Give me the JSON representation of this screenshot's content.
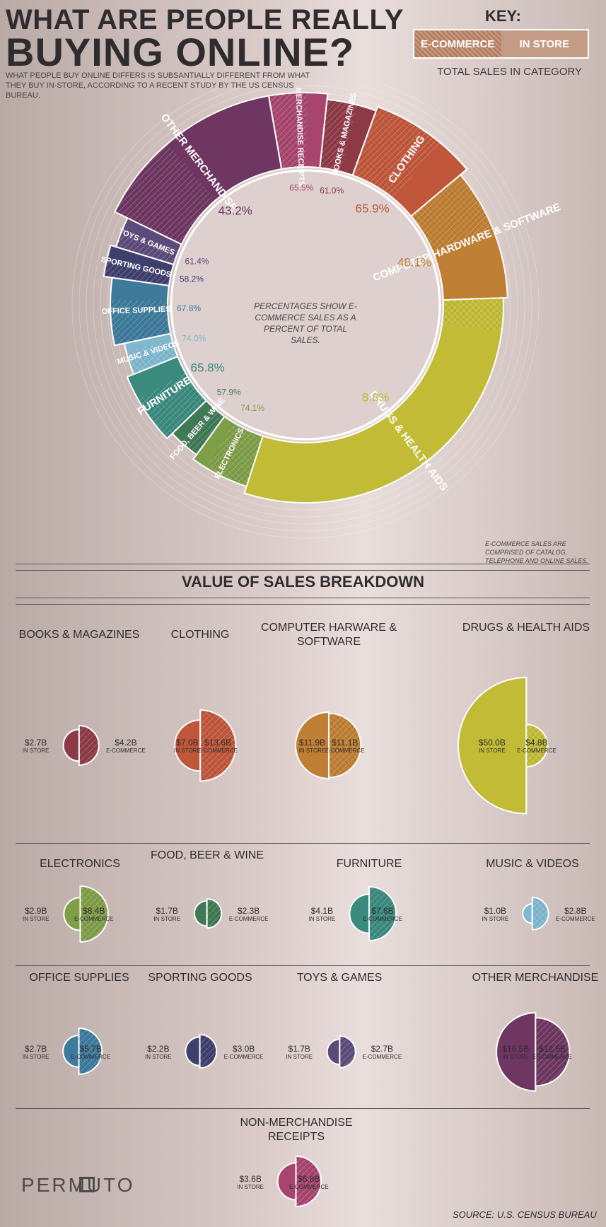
{
  "title_line1": "WHAT ARE PEOPLE REALLY",
  "title_line2": "BUYING ONLINE?",
  "subtitle": "WHAT PEOPLE BUY ONLINE DIFFERS IS SUBSANTIALLY DIFFERENT FROM WHAT THEY BUY IN-STORE, ACCORDING TO A RECENT STUDY BY THE US CENSUS BUREAU.",
  "key": {
    "title": "KEY:",
    "ecommerce": "E-COMMERCE",
    "in_store": "IN STORE",
    "total": "TOTAL SALES IN CATEGORY"
  },
  "center_note": "PERCENTAGES SHOW E-COMMERCE SALES AS A PERCENT OF TOTAL SALES.",
  "footnote": "E-COMMERCE SALES ARE COMPRISED OF CATALOG, TELEPHONE AND ONLINE SALES.",
  "section_title": "VALUE OF SALES BREAKDOWN",
  "value_labels": {
    "in_store": "IN STORE",
    "ecommerce": "E-COMMERCE"
  },
  "categories": [
    {
      "name": "BOOKS & MAGAZINES",
      "short": "BOOKS & MAGAZINES",
      "pct": "61.0%",
      "in_store": 2.7,
      "ecommerce": 4.2,
      "in_store_label": "$2.7B",
      "ecommerce_label": "$4.2B",
      "color": "#8e3a46"
    },
    {
      "name": "CLOTHING",
      "short": "CLOTHING",
      "pct": "65.9%",
      "in_store": 7.0,
      "ecommerce": 13.6,
      "in_store_label": "$7.0B",
      "ecommerce_label": "$13.6B",
      "color": "#c0563a"
    },
    {
      "name": "COMPUTER HARWARE & SOFTWARE",
      "short": "COMPUTER HARDWARE & SOFTWARE",
      "pct": "48.1%",
      "in_store": 11.9,
      "ecommerce": 11.1,
      "in_store_label": "$11.9B",
      "ecommerce_label": "$11.1B",
      "color": "#bf7f34"
    },
    {
      "name": "DRUGS & HEALTH AIDS",
      "short": "DRUGS & HEALTH AIDS",
      "pct": "8.8%",
      "in_store": 50.0,
      "ecommerce": 4.8,
      "in_store_label": "$50.0B",
      "ecommerce_label": "$4.8B",
      "color": "#c2bb36"
    },
    {
      "name": "ELECTRONICS",
      "short": "ELECTRONICS",
      "pct": "74.1%",
      "in_store": 2.9,
      "ecommerce": 8.4,
      "in_store_label": "$2.9B",
      "ecommerce_label": "$8.4B",
      "color": "#7f9e48"
    },
    {
      "name": "FOOD, BEER & WINE",
      "short": "FOOD, BEER & WINE",
      "pct": "57.9%",
      "in_store": 1.7,
      "ecommerce": 2.3,
      "in_store_label": "$1.7B",
      "ecommerce_label": "$2.3B",
      "color": "#3f7a55"
    },
    {
      "name": "FURNITURE",
      "short": "FURNITURE",
      "pct": "65.8%",
      "in_store": 4.1,
      "ecommerce": 7.8,
      "in_store_label": "$4.1B",
      "ecommerce_label": "$7.8B",
      "color": "#3a8a7e"
    },
    {
      "name": "MUSIC & VIDEOS",
      "short": "MUSIC & VIDEOS",
      "pct": "74.0%",
      "in_store": 1.0,
      "ecommerce": 2.8,
      "in_store_label": "$1.0B",
      "ecommerce_label": "$2.8B",
      "color": "#7fb8cf"
    },
    {
      "name": "OFFICE SUPPLIES",
      "short": "OFFICE SUPPLIES",
      "pct": "67.8%",
      "in_store": 2.7,
      "ecommerce": 5.7,
      "in_store_label": "$2.7B",
      "ecommerce_label": "$5.7B",
      "color": "#3d7a9c"
    },
    {
      "name": "SPORTING GOODS",
      "short": "SPORTING GOODS",
      "pct": "58.2%",
      "in_store": 2.2,
      "ecommerce": 3.0,
      "in_store_label": "$2.2B",
      "ecommerce_label": "$3.0B",
      "color": "#3f3f6e"
    },
    {
      "name": "TOYS & GAMES",
      "short": "TOYS & GAMES",
      "pct": "61.4%",
      "in_store": 1.7,
      "ecommerce": 2.7,
      "in_store_label": "$1.7B",
      "ecommerce_label": "$2.7B",
      "color": "#5c4a7a"
    },
    {
      "name": "OTHER MERCHANDISE",
      "short": "OTHER MERCHANDISE",
      "pct": "43.2%",
      "in_store": 16.5,
      "ecommerce": 12.5,
      "in_store_label": "$16.5B",
      "ecommerce_label": "$12.5B",
      "color": "#6e3660"
    },
    {
      "name": "NON-MERCHANDISE RECEIPTS",
      "short": "NON MERCHANDISE RECEIPTS",
      "pct": "65.5%",
      "in_store": 3.6,
      "ecommerce": 6.8,
      "in_store_label": "$3.6B",
      "ecommerce_label": "$6.8B",
      "color": "#a8456e"
    }
  ],
  "logo": "PERMUTO",
  "source": "SOURCE: U.S. CENSUS BUREAU"
}
